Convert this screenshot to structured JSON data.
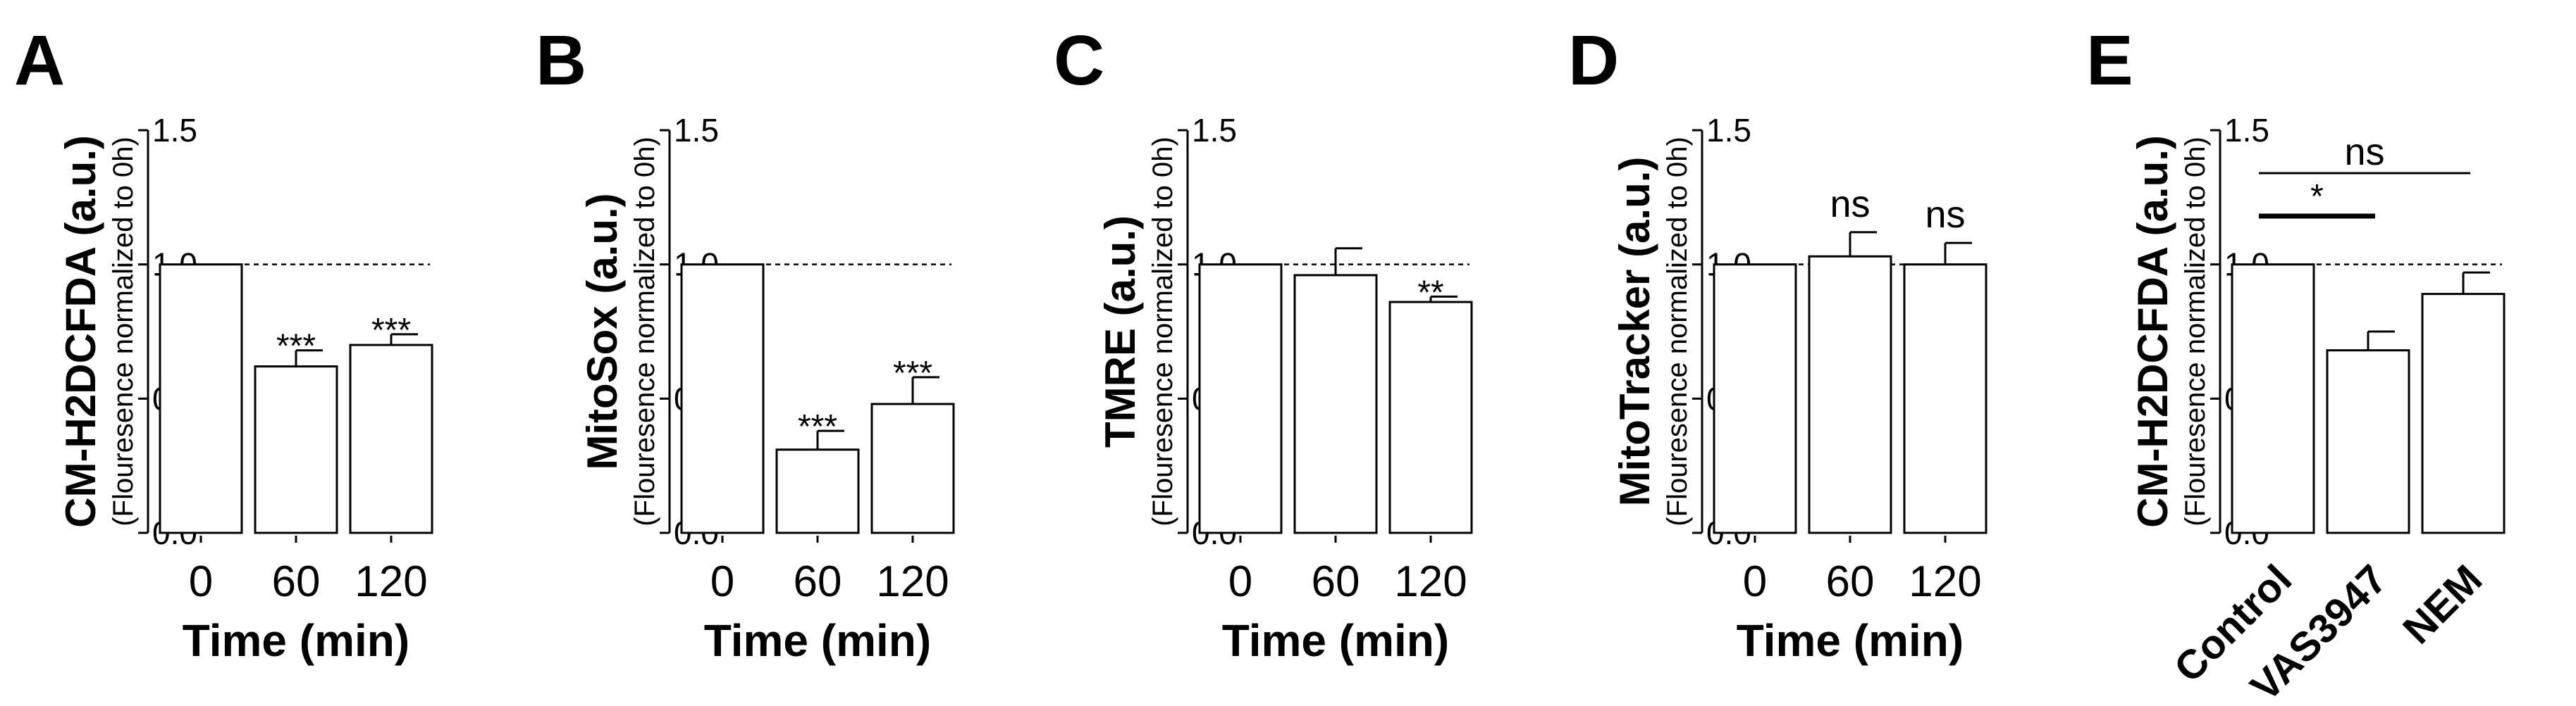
{
  "chart_data": [
    {
      "type": "bar",
      "panel": "A",
      "ylabel": "CM-H2DCFDA (a.u.)",
      "ylabel_sub": "(Flouresence normalized to 0h)",
      "xlabel": "Time (min)",
      "categories": [
        "0",
        "60",
        "120"
      ],
      "values": [
        1.0,
        0.62,
        0.7
      ],
      "errors": [
        0,
        0.06,
        0.04
      ],
      "significance": [
        "",
        "***",
        "***"
      ],
      "reference_line": 1.0,
      "ylim": [
        0,
        1.5
      ],
      "yticks": [
        "0.0",
        "0.5",
        "1.0",
        "1.5"
      ],
      "x_tick_rotated": false
    },
    {
      "type": "bar",
      "panel": "B",
      "ylabel": "MitoSox (a.u.)",
      "ylabel_sub": "(Flouresence normalized to 0h)",
      "xlabel": "Time (min)",
      "categories": [
        "0",
        "60",
        "120"
      ],
      "values": [
        1.0,
        0.31,
        0.48
      ],
      "errors": [
        0,
        0.07,
        0.1
      ],
      "significance": [
        "",
        "***",
        "***"
      ],
      "reference_line": 1.0,
      "ylim": [
        0,
        1.5
      ],
      "yticks": [
        "0.0",
        "0.5",
        "1.0",
        "1.5"
      ],
      "x_tick_rotated": false
    },
    {
      "type": "bar",
      "panel": "C",
      "ylabel": "TMRE (a.u.)",
      "ylabel_sub": "(Flouresence normalized to 0h)",
      "xlabel": "Time (min)",
      "categories": [
        "0",
        "60",
        "120"
      ],
      "values": [
        1.0,
        0.96,
        0.86
      ],
      "errors": [
        0,
        0.1,
        0.02
      ],
      "significance": [
        "",
        "",
        "**"
      ],
      "reference_line": 1.0,
      "ylim": [
        0,
        1.5
      ],
      "yticks": [
        "0.0",
        "0.5",
        "1.0",
        "1.5"
      ],
      "x_tick_rotated": false
    },
    {
      "type": "bar",
      "panel": "D",
      "ylabel": "MitoTracker (a.u.)",
      "ylabel_sub": "(Flouresence normalized to 0h)",
      "xlabel": "Time (min)",
      "categories": [
        "0",
        "60",
        "120"
      ],
      "values": [
        1.0,
        1.03,
        1.0
      ],
      "errors": [
        0,
        0.09,
        0.08
      ],
      "significance": [
        "",
        "ns",
        "ns"
      ],
      "reference_line": 1.0,
      "ylim": [
        0,
        1.5
      ],
      "yticks": [
        "0.0",
        "0.5",
        "1.0",
        "1.5"
      ],
      "x_tick_rotated": false
    },
    {
      "type": "bar",
      "panel": "E",
      "ylabel": "CM-H2DCFDA (a.u.)",
      "ylabel_sub": "(Flouresence normalized to 0h)",
      "xlabel": "",
      "categories": [
        "Control",
        "VAS3947",
        "NEM"
      ],
      "values": [
        1.0,
        0.68,
        0.89
      ],
      "errors": [
        0,
        0.07,
        0.08
      ],
      "significance": [
        "",
        "",
        ""
      ],
      "reference_line": 1.0,
      "ylim": [
        0,
        1.5
      ],
      "yticks": [
        "0.0",
        "0.5",
        "1.0",
        "1.5"
      ],
      "x_tick_rotated": true,
      "brackets": [
        {
          "from": 0,
          "to": 1,
          "label": "*",
          "y": 1.18,
          "bold": true
        },
        {
          "from": 0,
          "to": 2,
          "label": "ns",
          "y": 1.34,
          "bold": false
        }
      ]
    }
  ]
}
